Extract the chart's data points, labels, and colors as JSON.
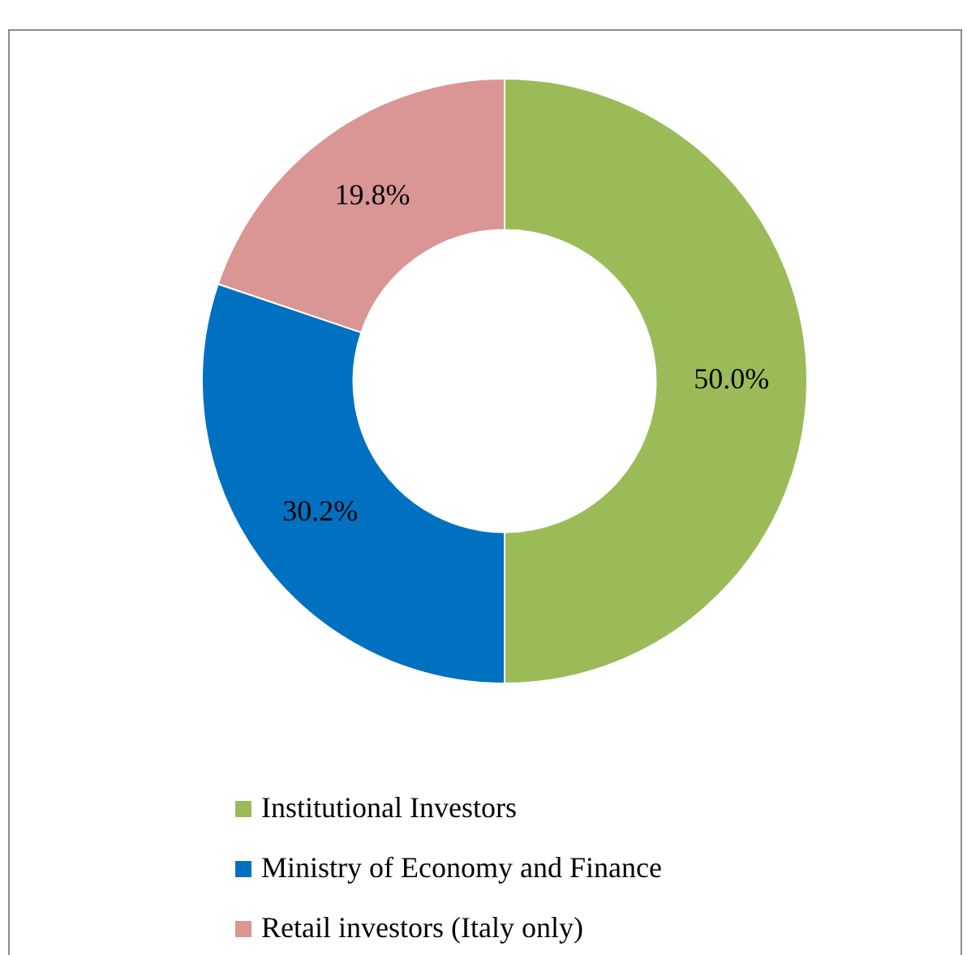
{
  "chart_data": {
    "type": "donut",
    "categories": [
      "Institutional Investors",
      "Ministry of Economy and Finance",
      "Retail investors (Italy only)"
    ],
    "values": [
      50.0,
      30.2,
      19.8
    ],
    "colors": [
      "#9bbb59",
      "#0070c0",
      "#d99694"
    ],
    "value_labels": [
      "50.0%",
      "30.2%",
      "19.8%"
    ],
    "legend": "bottom"
  }
}
